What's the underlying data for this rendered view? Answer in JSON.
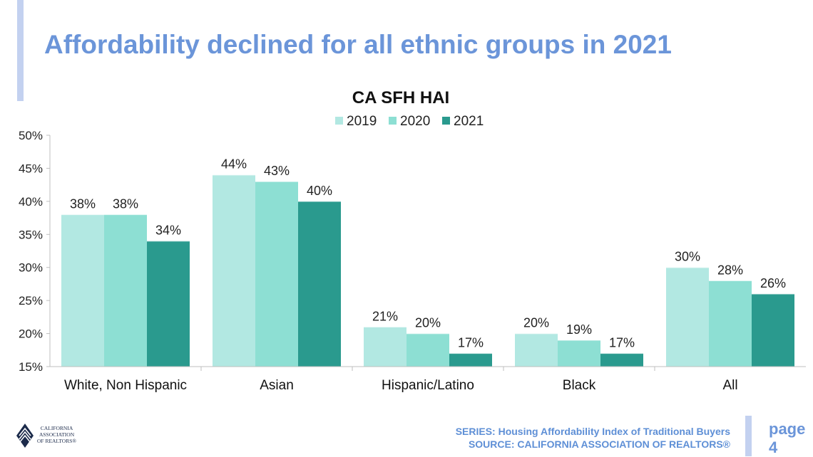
{
  "slide_title": "Affordability declined for all ethnic groups in 2021",
  "footer": {
    "series": "SERIES: Housing Affordability Index of Traditional Buyers",
    "source": "SOURCE: CALIFORNIA ASSOCIATION OF REALTORS®",
    "page_word": "page",
    "page_number": "4"
  },
  "logo": {
    "line1": "CALIFORNIA",
    "line2": "ASSOCIATION",
    "line3": "OF REALTORS®"
  },
  "colors": {
    "title": "#6b95d9",
    "accent_bar": "#c3d1f0",
    "s2019": "#b2e8e2",
    "s2020": "#8ddfd3",
    "s2021": "#2a9a8e"
  },
  "chart_data": {
    "type": "bar",
    "title": "CA SFH HAI",
    "categories": [
      "White, Non Hispanic",
      "Asian",
      "Hispanic/Latino",
      "Black",
      "All"
    ],
    "series": [
      {
        "name": "2019",
        "values": [
          38,
          44,
          21,
          20,
          30
        ],
        "labels": [
          "38%",
          "44%",
          "21%",
          "20%",
          "30%"
        ],
        "color": "#b2e8e2"
      },
      {
        "name": "2020",
        "values": [
          38,
          43,
          20,
          19,
          28
        ],
        "labels": [
          "38%",
          "43%",
          "20%",
          "19%",
          "28%"
        ],
        "color": "#8ddfd3"
      },
      {
        "name": "2021",
        "values": [
          34,
          40,
          17,
          17,
          26
        ],
        "labels": [
          "34%",
          "40%",
          "17%",
          "17%",
          "26%"
        ],
        "color": "#2a9a8e"
      }
    ],
    "ylim": [
      15,
      50
    ],
    "yticks": [
      "15%",
      "20%",
      "25%",
      "30%",
      "35%",
      "40%",
      "45%",
      "50%"
    ],
    "legend_position": "top",
    "grid": false
  }
}
